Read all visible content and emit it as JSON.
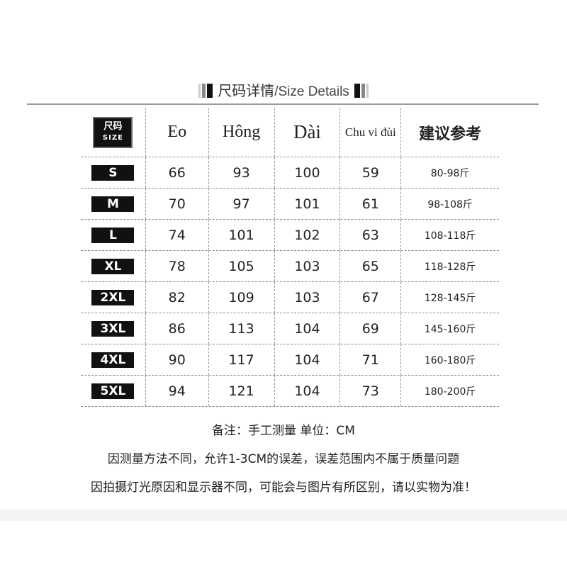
{
  "title": {
    "cn": "尺码详情",
    "separator": "/",
    "en": "Size Details"
  },
  "table": {
    "size_header": {
      "cn": "尺码",
      "en": "SIZE"
    },
    "headers": [
      "Eo",
      "Hông",
      "Dài",
      "Chu vi đùi",
      "建议参考"
    ],
    "rows": [
      {
        "size": "S",
        "values": [
          "66",
          "93",
          "100",
          "59",
          "80-98斤"
        ]
      },
      {
        "size": "M",
        "values": [
          "70",
          "97",
          "101",
          "61",
          "98-108斤"
        ]
      },
      {
        "size": "L",
        "values": [
          "74",
          "101",
          "102",
          "63",
          "108-118斤"
        ]
      },
      {
        "size": "XL",
        "values": [
          "78",
          "105",
          "103",
          "65",
          "118-128斤"
        ]
      },
      {
        "size": "2XL",
        "values": [
          "82",
          "109",
          "103",
          "67",
          "128-145斤"
        ]
      },
      {
        "size": "3XL",
        "values": [
          "86",
          "113",
          "104",
          "69",
          "145-160斤"
        ]
      },
      {
        "size": "4XL",
        "values": [
          "90",
          "117",
          "104",
          "71",
          "160-180斤"
        ]
      },
      {
        "size": "5XL",
        "values": [
          "94",
          "121",
          "104",
          "73",
          "180-200斤"
        ]
      }
    ]
  },
  "notes": [
    "备注：手工测量  单位：CM",
    "因测量方法不同，允许1-3CM的误差，误差范围内不属于质量问题",
    "因拍摄灯光原因和显示器不同，可能会与图片有所区别，请以实物为准！"
  ]
}
